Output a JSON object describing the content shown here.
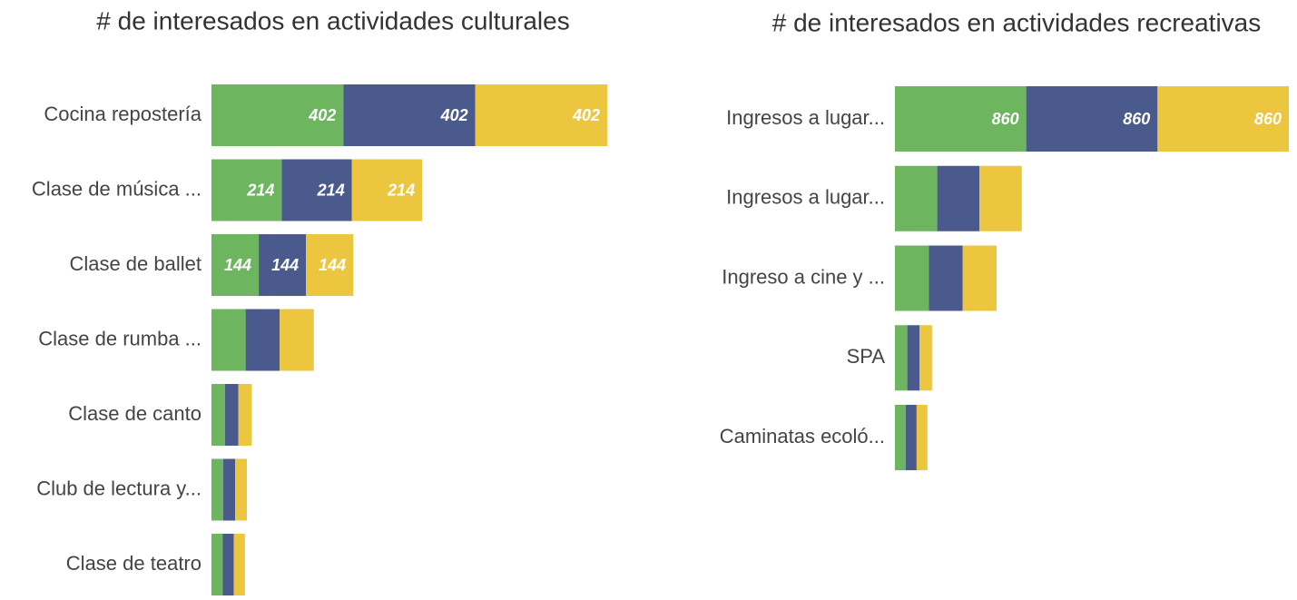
{
  "chart_data": [
    {
      "type": "stacked-bar-horizontal",
      "title": "# de interesados en actividades culturales",
      "categories": [
        "Cocina repostería",
        "Clase de música ...",
        "Clase de ballet",
        "Clase de rumba ...",
        "Clase de canto",
        "Club de lectura y...",
        "Clase de teatro"
      ],
      "series": [
        {
          "color": "#6db55f",
          "values": [
            402,
            214,
            144,
            104,
            41,
            36,
            34
          ]
        },
        {
          "color": "#4a5a8c",
          "values": [
            402,
            214,
            144,
            104,
            41,
            36,
            34
          ]
        },
        {
          "color": "#ecc63f",
          "values": [
            402,
            214,
            144,
            104,
            41,
            36,
            34
          ]
        }
      ]
    },
    {
      "type": "stacked-bar-horizontal",
      "title": "# de interesados en actividades recreativas",
      "categories": [
        "Ingresos a lugar...",
        "Ingresos a lugar...",
        "Ingreso a cine y ...",
        "SPA",
        "Caminatas ecoló..."
      ],
      "series": [
        {
          "color": "#6db55f",
          "values": [
            860,
            277,
            222,
            81,
            71
          ]
        },
        {
          "color": "#4a5a8c",
          "values": [
            860,
            277,
            222,
            81,
            71
          ]
        },
        {
          "color": "#ecc63f",
          "values": [
            860,
            277,
            222,
            81,
            71
          ]
        }
      ]
    }
  ]
}
